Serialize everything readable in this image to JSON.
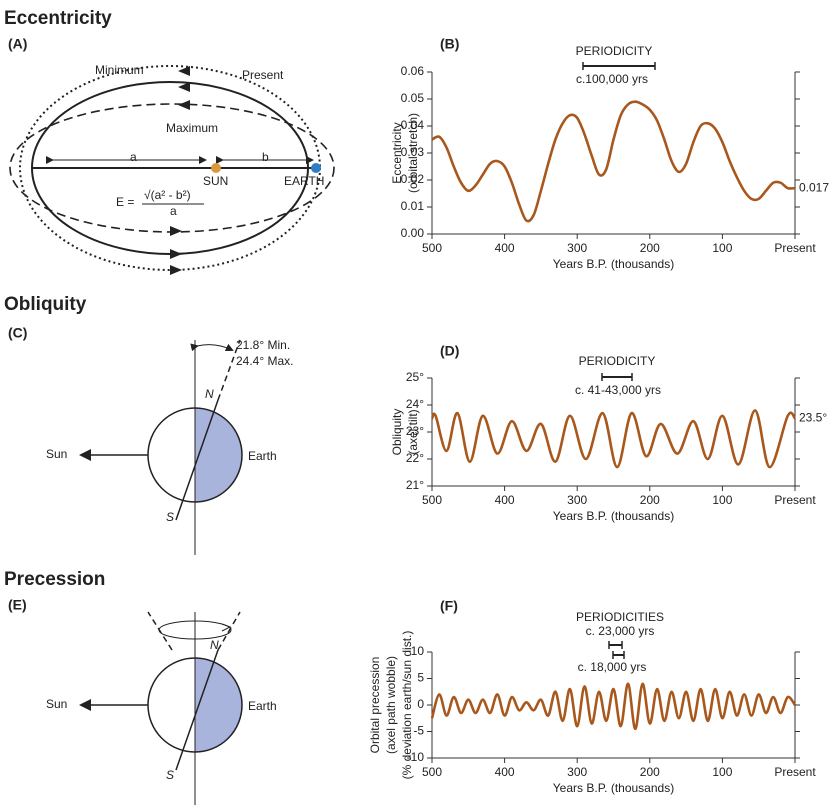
{
  "sections": [
    {
      "title": "Eccentricity",
      "panel": "(A)"
    },
    {
      "title": "Obliquity",
      "panel": "(C)"
    },
    {
      "title": "Precession",
      "panel": "(E)"
    }
  ],
  "diagrams": {
    "eccentricity": {
      "minimum": "Minimum",
      "present": "Present",
      "maximum": "Maximum",
      "a": "a",
      "b": "b",
      "sun": "SUN",
      "earth": "EARTH",
      "formula_left": "E =",
      "formula_top": "√(a² - b²)",
      "formula_bottom": "a"
    },
    "obliquity": {
      "min": "21.8° Min.",
      "max": "24.4° Max.",
      "north": "N",
      "south": "S",
      "sun": "Sun",
      "earth": "Earth"
    },
    "precession": {
      "north": "N",
      "south": "S",
      "sun": "Sun",
      "earth": "Earth"
    }
  },
  "chart_data": [
    {
      "type": "line",
      "panel": "(B)",
      "y_label": [
        "Eccentricity",
        "(orbital stretch)"
      ],
      "x_label": "Years B.P. (thousands)",
      "annotations": [
        "PERIODICITY",
        "c.100,000 yrs"
      ],
      "end_label": 0.017,
      "x": [
        500,
        490,
        480,
        470,
        460,
        450,
        440,
        430,
        420,
        410,
        400,
        390,
        380,
        370,
        360,
        350,
        340,
        330,
        320,
        310,
        300,
        290,
        280,
        270,
        260,
        250,
        240,
        230,
        220,
        210,
        200,
        190,
        180,
        170,
        160,
        150,
        140,
        130,
        120,
        110,
        100,
        90,
        80,
        70,
        60,
        50,
        40,
        30,
        20,
        10,
        0
      ],
      "series": [
        {
          "color": "#a8581c",
          "values": [
            0.035,
            0.036,
            0.032,
            0.025,
            0.019,
            0.016,
            0.018,
            0.022,
            0.026,
            0.027,
            0.025,
            0.019,
            0.011,
            0.005,
            0.007,
            0.016,
            0.026,
            0.035,
            0.041,
            0.044,
            0.043,
            0.037,
            0.029,
            0.022,
            0.024,
            0.035,
            0.044,
            0.048,
            0.049,
            0.048,
            0.046,
            0.042,
            0.035,
            0.027,
            0.023,
            0.026,
            0.034,
            0.04,
            0.041,
            0.039,
            0.034,
            0.027,
            0.021,
            0.016,
            0.013,
            0.013,
            0.016,
            0.019,
            0.019,
            0.017,
            0.017
          ]
        }
      ],
      "xlim": [
        500,
        0
      ],
      "xticks": [
        500,
        400,
        300,
        200,
        100,
        {
          "value": 0,
          "label": "Present"
        }
      ],
      "ylim": [
        0,
        0.06
      ],
      "yticks": [
        {
          "value": 0,
          "label": "0.00"
        },
        0.01,
        0.02,
        0.03,
        0.04,
        0.05,
        0.06
      ]
    },
    {
      "type": "line",
      "panel": "(D)",
      "y_label": [
        "Obliquity",
        "(axel tilt)"
      ],
      "x_label": "Years B.P. (thousands)",
      "annotations": [
        "PERIODICITY",
        "c. 41-43,000 yrs"
      ],
      "end_label": {
        "value": 23.5,
        "label": "23.5°"
      },
      "x": [
        500,
        495,
        480,
        465,
        448,
        430,
        410,
        390,
        370,
        350,
        330,
        310,
        288,
        265,
        245,
        225,
        205,
        185,
        162,
        140,
        120,
        100,
        78,
        55,
        35,
        10,
        0
      ],
      "series": [
        {
          "color": "#a8581c",
          "values": [
            23.5,
            23.6,
            22.3,
            23.7,
            21.9,
            23.6,
            22.2,
            23.4,
            22.3,
            23.3,
            21.9,
            23.6,
            22.0,
            23.7,
            21.7,
            23.7,
            22.1,
            23.3,
            22.2,
            23.4,
            22.0,
            23.6,
            21.8,
            23.8,
            21.7,
            23.6,
            23.5
          ]
        }
      ],
      "xlim": [
        500,
        0
      ],
      "xticks": [
        500,
        400,
        300,
        200,
        100,
        {
          "value": 0,
          "label": "Present"
        }
      ],
      "ylim": [
        21,
        25
      ],
      "yticks": [
        {
          "value": 21,
          "label": "21°"
        },
        {
          "value": 22,
          "label": "22°"
        },
        {
          "value": 23,
          "label": "23°"
        },
        {
          "value": 24,
          "label": "24°"
        },
        {
          "value": 25,
          "label": "25°"
        }
      ]
    },
    {
      "type": "line",
      "panel": "(F)",
      "y_label": [
        "Orbital precession",
        "(axel path wobble)",
        "(% deviation earth/sun dist.)"
      ],
      "x_label": "Years B.P. (thousands)",
      "annotations": [
        "PERIODICITIES",
        "c. 23,000 yrs",
        "c. 18,000 yrs"
      ],
      "x": [
        500,
        490,
        480,
        470,
        460,
        450,
        440,
        430,
        420,
        410,
        400,
        390,
        380,
        370,
        360,
        350,
        340,
        330,
        320,
        310,
        300,
        290,
        280,
        270,
        260,
        250,
        240,
        230,
        220,
        210,
        200,
        190,
        180,
        170,
        160,
        150,
        140,
        130,
        120,
        110,
        100,
        90,
        80,
        70,
        60,
        50,
        40,
        30,
        20,
        10,
        0
      ],
      "series": [
        {
          "color": "#a8581c",
          "values": [
            -2.5,
            2,
            -2,
            1.5,
            -1.5,
            1,
            -1.5,
            1,
            -1.5,
            2,
            -2,
            1.5,
            -1,
            0.5,
            -1,
            1,
            -2,
            2.5,
            -3,
            3,
            -4,
            3.5,
            -3.5,
            2.5,
            -3,
            3,
            -4,
            4,
            -4.5,
            4,
            -3.5,
            3,
            -3,
            2.5,
            -2.5,
            2.5,
            -3,
            3,
            -3,
            3,
            -2.5,
            2.5,
            -2,
            2,
            -2,
            2,
            -1.5,
            1.5,
            -1.5,
            1.5,
            0
          ]
        }
      ],
      "xlim": [
        500,
        0
      ],
      "xticks": [
        500,
        400,
        300,
        200,
        100,
        {
          "value": 0,
          "label": "Present"
        }
      ],
      "ylim": [
        -10,
        10
      ],
      "yticks": [
        -10,
        -5,
        0,
        5,
        10
      ]
    }
  ]
}
